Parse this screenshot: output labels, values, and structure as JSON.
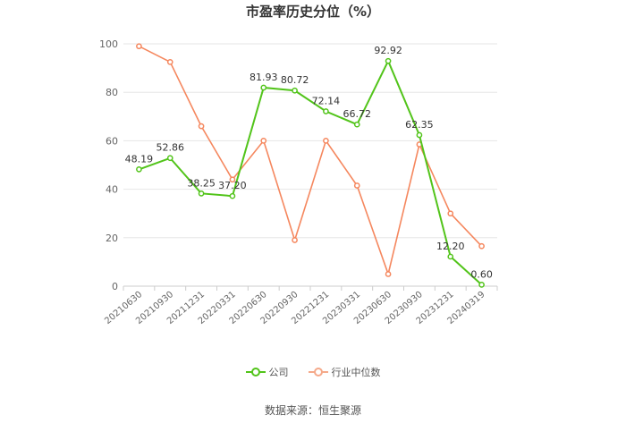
{
  "chart_data": {
    "type": "line",
    "title": "市盈率历史分位（%）",
    "categories": [
      "20210630",
      "20210930",
      "20211231",
      "20220331",
      "20220630",
      "20220930",
      "20221231",
      "20230331",
      "20230630",
      "20230930",
      "20231231",
      "20240319"
    ],
    "ylim": [
      0,
      100
    ],
    "yticks": [
      0,
      20,
      40,
      60,
      80,
      100
    ],
    "grid": true,
    "legend_position": "bottom",
    "series": [
      {
        "name": "公司",
        "color": "#52c41a",
        "values": [
          48.19,
          52.86,
          38.25,
          37.2,
          81.93,
          80.72,
          72.14,
          66.72,
          92.92,
          62.35,
          12.2,
          0.6
        ],
        "labels": [
          "48.19",
          "52.86",
          "38.25",
          "37.20",
          "81.93",
          "80.72",
          "72.14",
          "66.72",
          "92.92",
          "62.35",
          "12.20",
          "0.60"
        ]
      },
      {
        "name": "行业中位数",
        "color": "#f5875e",
        "values": [
          99,
          92.5,
          66,
          44,
          60,
          19,
          60,
          41.5,
          5,
          58.5,
          30,
          16.5
        ]
      }
    ]
  },
  "source": "数据来源：恒生聚源"
}
